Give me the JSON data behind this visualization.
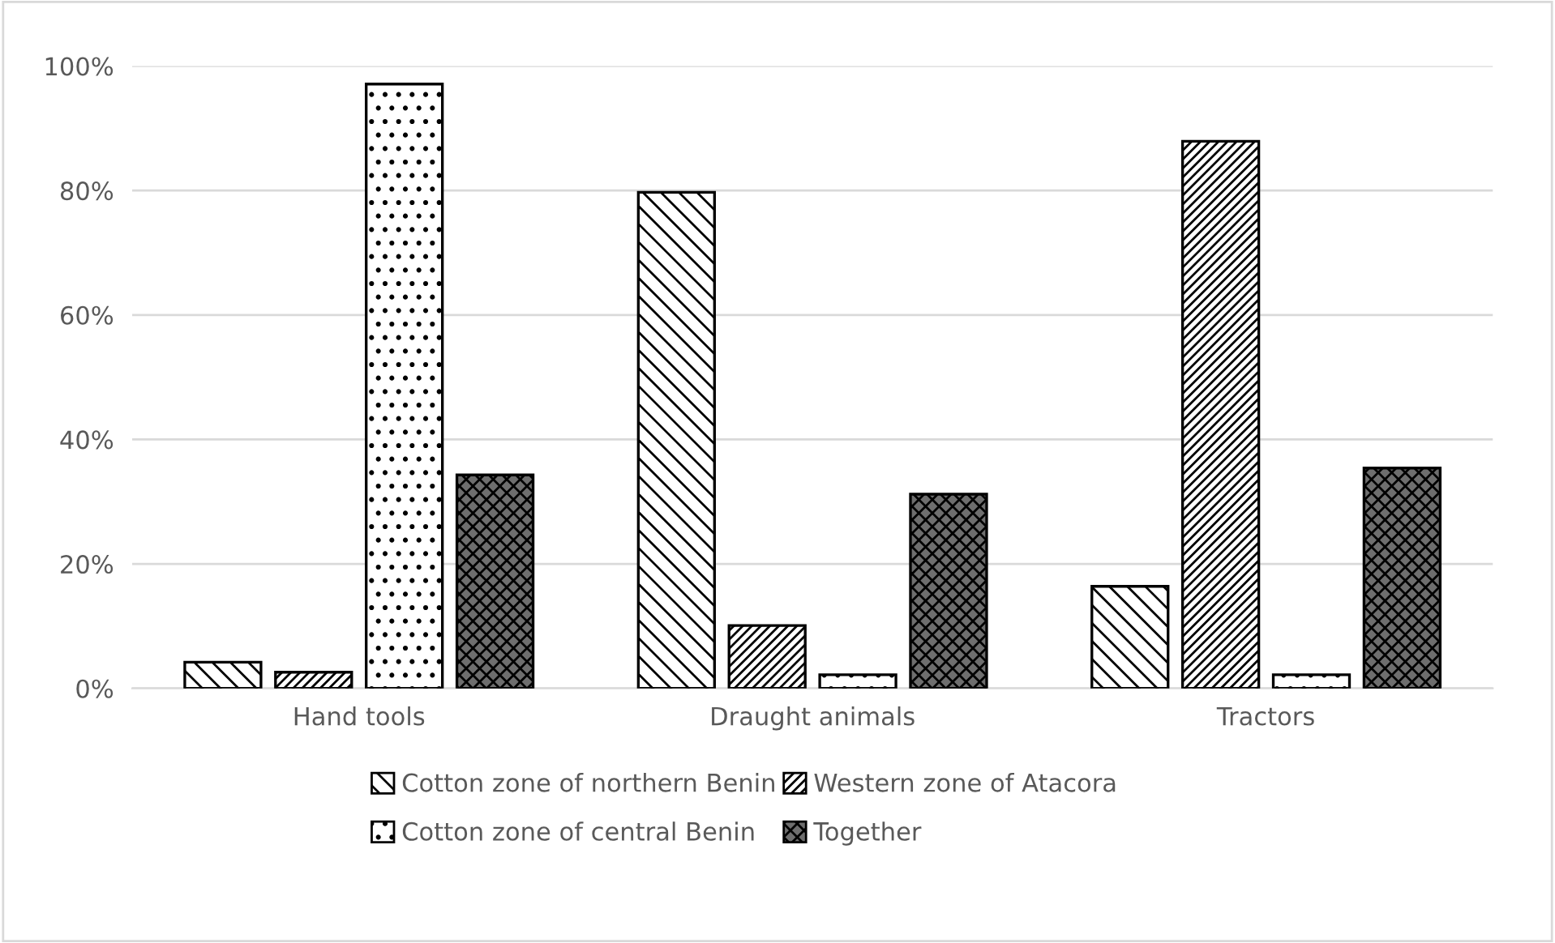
{
  "chart_data": {
    "type": "bar",
    "categories": [
      "Hand tools",
      "Draught animals",
      "Tractors"
    ],
    "series": [
      {
        "name": "Cotton zone of northern Benin",
        "color": "#000000",
        "values": [
          4.2,
          79.7,
          16.4
        ]
      },
      {
        "name": "Western zone of Atacora",
        "color": "#000000",
        "values": [
          2.6,
          10.1,
          87.9
        ]
      },
      {
        "name": "Cotton zone of central Benin",
        "color": "#000000",
        "values": [
          97.1,
          2.2,
          2.2
        ]
      },
      {
        "name": "Together",
        "color": "#000000",
        "values": [
          34.3,
          31.2,
          35.4
        ]
      }
    ],
    "ylim": [
      0,
      100
    ],
    "yticks": [
      {
        "value": 0,
        "label": "0%"
      },
      {
        "value": 20,
        "label": "20%"
      },
      {
        "value": 40,
        "label": "40%"
      },
      {
        "value": 60,
        "label": "60%"
      },
      {
        "value": 80,
        "label": "80%"
      },
      {
        "value": 100,
        "label": "100%"
      }
    ],
    "grid": "y",
    "legend": "bottom"
  }
}
